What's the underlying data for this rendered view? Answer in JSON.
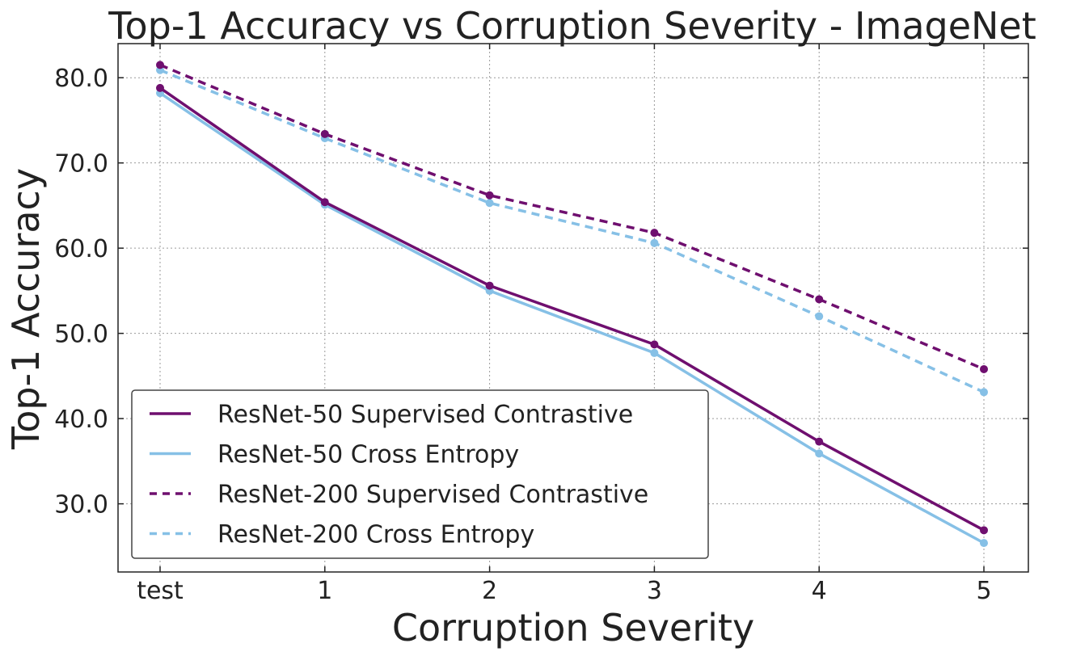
{
  "chart_data": {
    "type": "line",
    "title": "Top-1 Accuracy vs Corruption Severity - ImageNet",
    "xlabel": "Corruption Severity",
    "ylabel": "Top-1 Accuracy",
    "categories": [
      "test",
      "1",
      "2",
      "3",
      "4",
      "5"
    ],
    "ylim": [
      22,
      84
    ],
    "yticks": [
      "30.0",
      "40.0",
      "50.0",
      "60.0",
      "70.0",
      "80.0"
    ],
    "grid": true,
    "legend_position": "lower-left",
    "series": [
      {
        "name": "ResNet-50 Supervised Contrastive",
        "color": "#6f0f6f",
        "style": "solid",
        "values": [
          78.8,
          65.4,
          55.6,
          48.7,
          37.3,
          26.9
        ]
      },
      {
        "name": "ResNet-50 Cross Entropy",
        "color": "#86c0e6",
        "style": "solid",
        "values": [
          78.2,
          65.1,
          55.0,
          47.7,
          35.9,
          25.4
        ]
      },
      {
        "name": "ResNet-200 Supervised Contrastive",
        "color": "#6f0f6f",
        "style": "dashed",
        "values": [
          81.5,
          73.4,
          66.2,
          61.8,
          54.0,
          45.8
        ]
      },
      {
        "name": "ResNet-200 Cross Entropy",
        "color": "#86c0e6",
        "style": "dashed",
        "values": [
          80.9,
          72.9,
          65.3,
          60.6,
          52.0,
          43.1
        ]
      }
    ]
  }
}
